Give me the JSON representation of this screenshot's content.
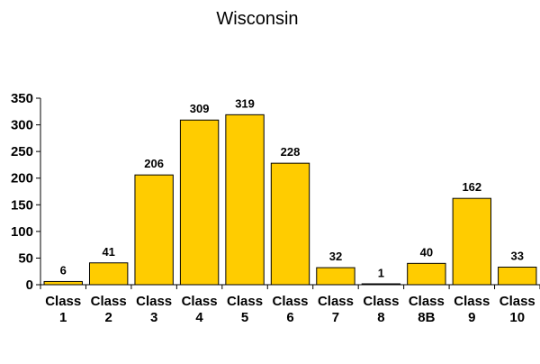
{
  "chart_data": {
    "type": "bar",
    "title": "Wisconsin",
    "xlabel": "",
    "ylabel": "",
    "categories": [
      "Class 1",
      "Class 2",
      "Class 3",
      "Class 4",
      "Class 5",
      "Class 6",
      "Class 7",
      "Class 8",
      "Class 8B",
      "Class 9",
      "Class 10"
    ],
    "category_lines": [
      [
        "Class",
        "1"
      ],
      [
        "Class",
        "2"
      ],
      [
        "Class",
        "3"
      ],
      [
        "Class",
        "4"
      ],
      [
        "Class",
        "5"
      ],
      [
        "Class",
        "6"
      ],
      [
        "Class",
        "7"
      ],
      [
        "Class",
        "8"
      ],
      [
        "Class",
        "8B"
      ],
      [
        "Class",
        "9"
      ],
      [
        "Class",
        "10"
      ]
    ],
    "values": [
      6,
      41,
      206,
      309,
      319,
      228,
      32,
      1,
      40,
      162,
      33
    ],
    "ylim": [
      0,
      350
    ],
    "yticks": [
      0,
      50,
      100,
      150,
      200,
      250,
      300,
      350
    ],
    "bar_color": "#FFCC00",
    "grid": false,
    "legend": "none"
  }
}
